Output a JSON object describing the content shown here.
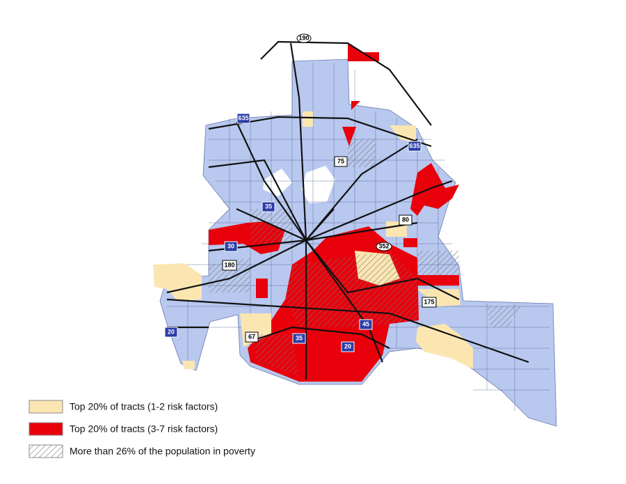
{
  "legend": [
    {
      "label": "Top 20% of tracts (1-2 risk factors)"
    },
    {
      "label": "Top 20% of tracts (3-7 risk factors)"
    },
    {
      "label": "More than 26% of the population in poverty"
    }
  ],
  "shields": [
    {
      "label": "190"
    },
    {
      "label": "635"
    },
    {
      "label": "635"
    },
    {
      "label": "75"
    },
    {
      "label": "35"
    },
    {
      "label": "80"
    },
    {
      "label": "30"
    },
    {
      "label": "352"
    },
    {
      "label": "180"
    },
    {
      "label": "175"
    },
    {
      "label": "20"
    },
    {
      "label": "67"
    },
    {
      "label": "35"
    },
    {
      "label": "45"
    },
    {
      "label": "20"
    }
  ]
}
